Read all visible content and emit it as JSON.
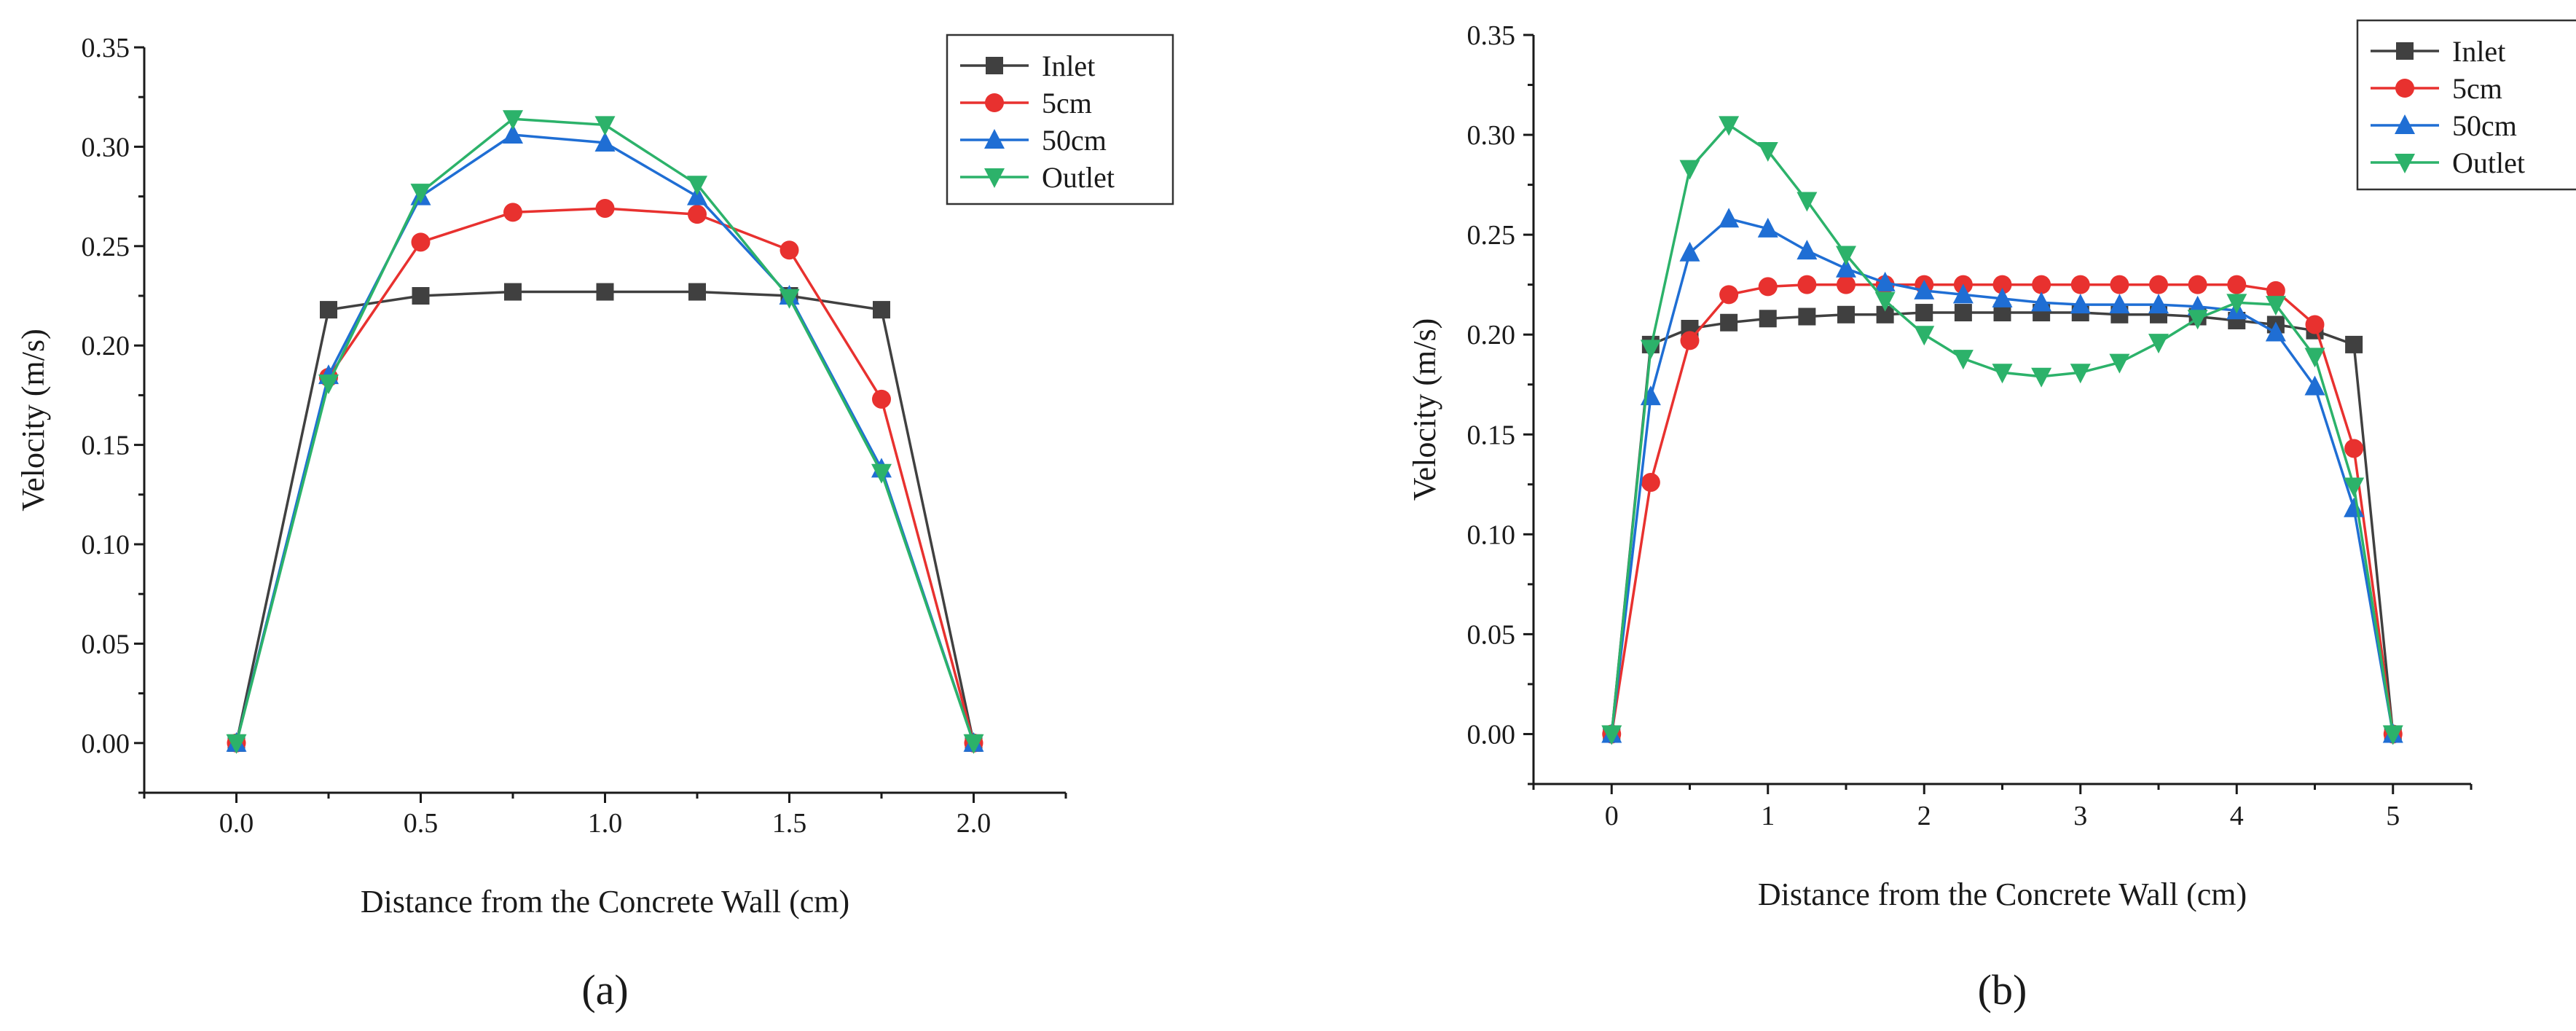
{
  "colors": {
    "Inlet": "#404040",
    "5cm": "#e8312f",
    "50cm": "#1f6ed4",
    "Outlet": "#2cb26a",
    "axis": "#1a1a1a"
  },
  "chart_data": [
    {
      "type": "line",
      "panel_label": "(a)",
      "title": "",
      "xlabel": "Distance from the Concrete Wall (cm)",
      "ylabel": "Velocity (m/s)",
      "xlim": [
        -0.25,
        2.25
      ],
      "ylim": [
        -0.025,
        0.35
      ],
      "xticks": [
        0.0,
        0.5,
        1.0,
        1.5,
        2.0
      ],
      "xtick_labels": [
        "0.0",
        "0.5",
        "1.0",
        "1.5",
        "2.0"
      ],
      "yticks": [
        0.0,
        0.05,
        0.1,
        0.15,
        0.2,
        0.25,
        0.3,
        0.35
      ],
      "ytick_labels": [
        "0.00",
        "0.05",
        "0.10",
        "0.15",
        "0.20",
        "0.25",
        "0.30",
        "0.35"
      ],
      "legend_position": "top-right",
      "grid": false,
      "series": [
        {
          "name": "Inlet",
          "marker": "square",
          "x": [
            0,
            0.25,
            0.5,
            0.75,
            1.0,
            1.25,
            1.5,
            1.75,
            2.0
          ],
          "y": [
            0.0,
            0.218,
            0.225,
            0.227,
            0.227,
            0.227,
            0.225,
            0.218,
            0.0
          ]
        },
        {
          "name": "5cm",
          "marker": "circle",
          "x": [
            0,
            0.25,
            0.5,
            0.75,
            1.0,
            1.25,
            1.5,
            1.75,
            2.0
          ],
          "y": [
            0.0,
            0.184,
            0.252,
            0.267,
            0.269,
            0.266,
            0.248,
            0.173,
            0.0
          ]
        },
        {
          "name": "50cm",
          "marker": "triangle-up",
          "x": [
            0,
            0.25,
            0.5,
            0.75,
            1.0,
            1.25,
            1.5,
            1.75,
            2.0
          ],
          "y": [
            0.0,
            0.185,
            0.275,
            0.306,
            0.302,
            0.275,
            0.225,
            0.138,
            0.0
          ]
        },
        {
          "name": "Outlet",
          "marker": "triangle-down",
          "x": [
            0,
            0.25,
            0.5,
            0.75,
            1.0,
            1.25,
            1.5,
            1.75,
            2.0
          ],
          "y": [
            0.0,
            0.181,
            0.277,
            0.314,
            0.311,
            0.281,
            0.224,
            0.136,
            0.0
          ]
        }
      ]
    },
    {
      "type": "line",
      "panel_label": "(b)",
      "title": "",
      "xlabel": "Distance from the Concrete Wall (cm)",
      "ylabel": "Velocity (m/s)",
      "xlim": [
        -0.5,
        5.5
      ],
      "ylim": [
        -0.025,
        0.35
      ],
      "xticks": [
        0,
        1,
        2,
        3,
        4,
        5
      ],
      "xtick_labels": [
        "0",
        "1",
        "2",
        "3",
        "4",
        "5"
      ],
      "yticks": [
        0.0,
        0.05,
        0.1,
        0.15,
        0.2,
        0.25,
        0.3,
        0.35
      ],
      "ytick_labels": [
        "0.00",
        "0.05",
        "0.10",
        "0.15",
        "0.20",
        "0.25",
        "0.30",
        "0.35"
      ],
      "legend_position": "top-right",
      "grid": false,
      "series": [
        {
          "name": "Inlet",
          "marker": "square",
          "x": [
            0,
            0.25,
            0.5,
            0.75,
            1.0,
            1.25,
            1.5,
            1.75,
            2.0,
            2.25,
            2.5,
            2.75,
            3.0,
            3.25,
            3.5,
            3.75,
            4.0,
            4.25,
            4.5,
            4.75,
            5.0
          ],
          "y": [
            0.0,
            0.195,
            0.203,
            0.206,
            0.208,
            0.209,
            0.21,
            0.21,
            0.211,
            0.211,
            0.211,
            0.211,
            0.211,
            0.21,
            0.21,
            0.209,
            0.207,
            0.205,
            0.202,
            0.195,
            0.0
          ]
        },
        {
          "name": "5cm",
          "marker": "circle",
          "x": [
            0,
            0.25,
            0.5,
            0.75,
            1.0,
            1.25,
            1.5,
            1.75,
            2.0,
            2.25,
            2.5,
            2.75,
            3.0,
            3.25,
            3.5,
            3.75,
            4.0,
            4.25,
            4.5,
            4.75,
            5.0
          ],
          "y": [
            0.0,
            0.126,
            0.197,
            0.22,
            0.224,
            0.225,
            0.225,
            0.225,
            0.225,
            0.225,
            0.225,
            0.225,
            0.225,
            0.225,
            0.225,
            0.225,
            0.225,
            0.222,
            0.205,
            0.143,
            0.0
          ]
        },
        {
          "name": "50cm",
          "marker": "triangle-up",
          "x": [
            0,
            0.25,
            0.5,
            0.75,
            1.0,
            1.25,
            1.5,
            1.75,
            2.0,
            2.25,
            2.5,
            2.75,
            3.0,
            3.25,
            3.5,
            3.75,
            4.0,
            4.25,
            4.5,
            4.75,
            5.0
          ],
          "y": [
            0.0,
            0.169,
            0.241,
            0.258,
            0.253,
            0.242,
            0.233,
            0.226,
            0.222,
            0.22,
            0.218,
            0.216,
            0.215,
            0.215,
            0.215,
            0.214,
            0.212,
            0.201,
            0.174,
            0.113,
            0.0
          ]
        },
        {
          "name": "Outlet",
          "marker": "triangle-down",
          "x": [
            0,
            0.25,
            0.5,
            0.75,
            1.0,
            1.25,
            1.5,
            1.75,
            2.0,
            2.25,
            2.5,
            2.75,
            3.0,
            3.25,
            3.5,
            3.75,
            4.0,
            4.25,
            4.5,
            4.75,
            5.0
          ],
          "y": [
            0.0,
            0.193,
            0.283,
            0.305,
            0.292,
            0.267,
            0.24,
            0.217,
            0.2,
            0.188,
            0.181,
            0.179,
            0.181,
            0.186,
            0.196,
            0.208,
            0.216,
            0.215,
            0.189,
            0.124,
            0.0
          ]
        }
      ]
    }
  ]
}
